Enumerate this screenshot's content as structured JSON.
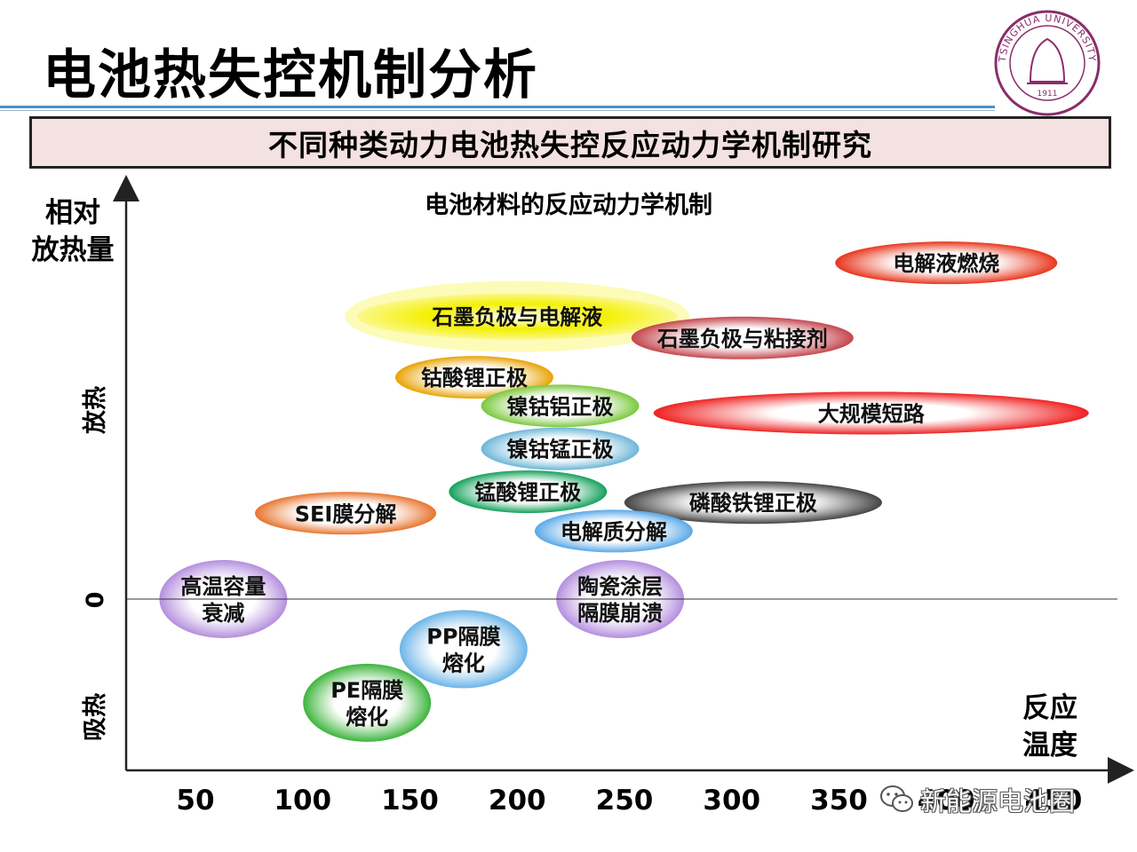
{
  "title": "电池热失控机制分析",
  "subtitle": "不同种类动力电池热失控反应动力学机制研究",
  "logo": {
    "ring_text": "TSINGHUA UNIVERSITY",
    "year": "1911",
    "color": "#8a2e6a"
  },
  "watermark": {
    "text": "新能源电池圈"
  },
  "chart_data": {
    "type": "diagram",
    "title": "电池材料的反应动力学机制",
    "y_axis_label_top": "相对",
    "y_axis_label_bottom": "放热量",
    "y_region_exo": "放热",
    "y_region_endo": "吸热",
    "y_zero": "0",
    "x_axis_label_top": "反应",
    "x_axis_label_bottom": "温度",
    "x_ticks": [
      "50",
      "100",
      "150",
      "200",
      "250",
      "300",
      "350",
      "400",
      "450"
    ],
    "items": [
      {
        "label": "电解液燃烧",
        "temp": 400,
        "level": 0.94,
        "color": "#e8361c",
        "style": "burst"
      },
      {
        "label": "石墨负极与电解液",
        "temp": 200,
        "level": 0.79,
        "color": "#f4f000",
        "style": "glow"
      },
      {
        "label": "石墨负极与粘接剂",
        "temp": 305,
        "level": 0.73,
        "color": "#c4464e",
        "style": "burst"
      },
      {
        "label": "钴酸锂正极",
        "temp": 180,
        "level": 0.62,
        "color": "#e8a200",
        "style": "solid"
      },
      {
        "label": "镍钴铝正极",
        "temp": 220,
        "level": 0.54,
        "color": "#7ac83c",
        "style": "solid"
      },
      {
        "label": "大规模短路",
        "temp": 365,
        "level": 0.52,
        "color": "#ef2222",
        "style": "burst"
      },
      {
        "label": "镍钴锰正极",
        "temp": 220,
        "level": 0.42,
        "color": "#6cb6d8",
        "style": "solid"
      },
      {
        "label": "锰酸锂正极",
        "temp": 205,
        "level": 0.3,
        "color": "#13a05a",
        "style": "solid"
      },
      {
        "label": "SEI膜分解",
        "temp": 120,
        "level": 0.24,
        "color": "#e8742c",
        "style": "solid"
      },
      {
        "label": "磷酸铁锂正极",
        "temp": 310,
        "level": 0.27,
        "color": "#444444",
        "style": "burst"
      },
      {
        "label": "电解质分解",
        "temp": 245,
        "level": 0.19,
        "color": "#58a8e8",
        "style": "solid"
      },
      {
        "label": "高温容量\n衰减",
        "temp": 63,
        "level": 0.0,
        "color": "#b48ede",
        "style": "solid"
      },
      {
        "label": "陶瓷涂层\n隔膜崩溃",
        "temp": 248,
        "level": 0.0,
        "color": "#b48ede",
        "style": "solid"
      },
      {
        "label": "PP隔膜\n熔化",
        "temp": 175,
        "level": -0.14,
        "color": "#6cb4e8",
        "style": "solid"
      },
      {
        "label": "PE隔膜\n熔化",
        "temp": 130,
        "level": -0.29,
        "color": "#3cb43c",
        "style": "solid"
      }
    ]
  }
}
